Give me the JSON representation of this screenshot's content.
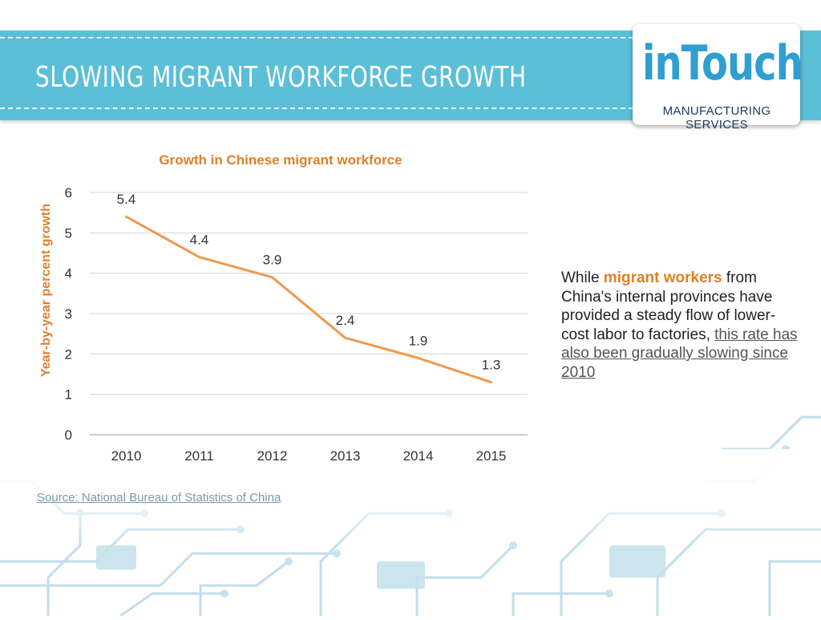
{
  "header": {
    "title": "Slowing Migrant Workforce Growth",
    "logo_word": "inTouch",
    "logo_subtitle": "MANUFACTURING SERVICES"
  },
  "side_text": {
    "part1": "While ",
    "highlight": "migrant workers",
    "part2": " from China's internal provinces have provided a steady flow of lower-cost labor to factories, ",
    "link": "this rate has also been gradually slowing since 2010"
  },
  "source": "Source: National Bureau of Statistics of China",
  "colors": {
    "accent": "#e07f26",
    "header": "#5bbfd8",
    "line": "#ef9a4e"
  },
  "chart_data": {
    "type": "line",
    "title": "Growth in Chinese migrant workforce",
    "ylabel": "Year-by-year percent growth",
    "xlabel": "",
    "categories": [
      "2010",
      "2011",
      "2012",
      "2013",
      "2014",
      "2015"
    ],
    "series": [
      {
        "values": [
          5.4,
          4.4,
          3.9,
          2.4,
          1.9,
          1.3
        ]
      }
    ],
    "data_labels": [
      "5.4",
      "4.4",
      "3.9",
      "2.4",
      "1.9",
      "1.3"
    ],
    "ylim": [
      0,
      6
    ],
    "yticks": [
      "0",
      "1",
      "2",
      "3",
      "4",
      "5",
      "6"
    ],
    "grid": true,
    "legend": "none"
  }
}
